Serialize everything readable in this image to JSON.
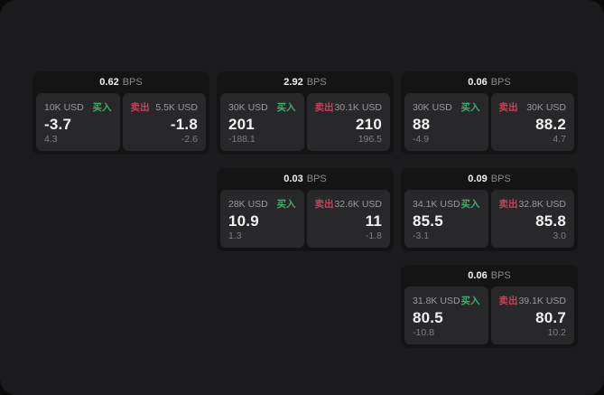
{
  "labels": {
    "bps_unit": "BPS",
    "buy": "买入",
    "sell": "卖出"
  },
  "colors": {
    "buy": "#3eae6c",
    "sell": "#c2455c",
    "outer_bg": "#0a0a0a",
    "panel_bg": "#1b1b1d",
    "card_bg": "#141414",
    "tile_bg": "#28282a",
    "text_primary": "#f2f2f2",
    "text_secondary": "#9b9b9b",
    "text_muted": "#7f7f7f"
  },
  "cards": [
    {
      "spread": "0.62",
      "buy": {
        "size": "10K USD",
        "price": "-3.7",
        "change": "4.3"
      },
      "sell": {
        "size": "5.5K USD",
        "price": "-1.8",
        "change": "-2.6"
      }
    },
    {
      "spread": "2.92",
      "buy": {
        "size": "30K USD",
        "price": "201",
        "change": "-188.1"
      },
      "sell": {
        "size": "30.1K USD",
        "price": "210",
        "change": "196.5"
      }
    },
    {
      "spread": "0.06",
      "buy": {
        "size": "30K USD",
        "price": "88",
        "change": "-4.9"
      },
      "sell": {
        "size": "30K USD",
        "price": "88.2",
        "change": "4.7"
      }
    },
    {
      "spread": "0.03",
      "buy": {
        "size": "28K USD",
        "price": "10.9",
        "change": "1.3"
      },
      "sell": {
        "size": "32.6K USD",
        "price": "11",
        "change": "-1.8"
      }
    },
    {
      "spread": "0.09",
      "buy": {
        "size": "34.1K USD",
        "price": "85.5",
        "change": "-3.1"
      },
      "sell": {
        "size": "32.8K USD",
        "price": "85.8",
        "change": "3.0"
      }
    },
    {
      "spread": "0.06",
      "buy": {
        "size": "31.8K USD",
        "price": "80.5",
        "change": "-10.8"
      },
      "sell": {
        "size": "39.1K USD",
        "price": "80.7",
        "change": "10.2"
      }
    }
  ]
}
